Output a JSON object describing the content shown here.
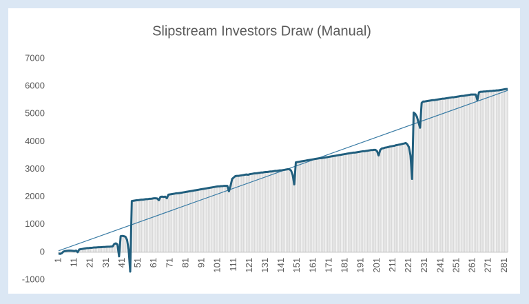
{
  "chart_data": {
    "type": "line",
    "title": "Slipstream Investors Draw (Manual)",
    "x": [
      1,
      2,
      3,
      4,
      5,
      6,
      7,
      8,
      9,
      10,
      11,
      12,
      13,
      14,
      15,
      16,
      17,
      18,
      19,
      20,
      21,
      22,
      23,
      24,
      25,
      26,
      27,
      28,
      29,
      30,
      31,
      32,
      33,
      34,
      35,
      36,
      37,
      38,
      39,
      40,
      41,
      42,
      43,
      44,
      45,
      46,
      47,
      48,
      49,
      50,
      51,
      52,
      53,
      54,
      55,
      56,
      57,
      58,
      59,
      60,
      61,
      62,
      63,
      64,
      65,
      66,
      67,
      68,
      69,
      70,
      71,
      72,
      73,
      74,
      75,
      76,
      77,
      78,
      79,
      80,
      81,
      82,
      83,
      84,
      85,
      86,
      87,
      88,
      89,
      90,
      91,
      92,
      93,
      94,
      95,
      96,
      97,
      98,
      99,
      100,
      101,
      102,
      103,
      104,
      105,
      106,
      107,
      108,
      109,
      110,
      111,
      112,
      113,
      114,
      115,
      116,
      117,
      118,
      119,
      120,
      121,
      122,
      123,
      124,
      125,
      126,
      127,
      128,
      129,
      130,
      131,
      132,
      133,
      134,
      135,
      136,
      137,
      138,
      139,
      140,
      141,
      142,
      143,
      144,
      145,
      146,
      147,
      148,
      149,
      150,
      151,
      152,
      153,
      154,
      155,
      156,
      157,
      158,
      159,
      160,
      161,
      162,
      163,
      164,
      165,
      166,
      167,
      168,
      169,
      170,
      171,
      172,
      173,
      174,
      175,
      176,
      177,
      178,
      179,
      180,
      181,
      182,
      183,
      184,
      185,
      186,
      187,
      188,
      189,
      190,
      191,
      192,
      193,
      194,
      195,
      196,
      197,
      198,
      199,
      200,
      201,
      202,
      203,
      204,
      205,
      206,
      207,
      208,
      209,
      210,
      211,
      212,
      213,
      214,
      215,
      216,
      217,
      218,
      219,
      220,
      221,
      222,
      223,
      224,
      225,
      226,
      227,
      228,
      229,
      230,
      231,
      232,
      233,
      234,
      235,
      236,
      237,
      238,
      239,
      240,
      241,
      242,
      243,
      244,
      245,
      246,
      247,
      248,
      249,
      250,
      251,
      252,
      253,
      254,
      255,
      256,
      257,
      258,
      259,
      260,
      261,
      262,
      263,
      264,
      265,
      266,
      267,
      268,
      269,
      270,
      271,
      272,
      273,
      274,
      275,
      276,
      277,
      278,
      279,
      280,
      281,
      282,
      283
    ],
    "series": [
      {
        "color": "#215f7e",
        "bar_color": "#d9d9d9",
        "values": [
          -50,
          -60,
          -40,
          20,
          40,
          50,
          55,
          60,
          55,
          50,
          40,
          60,
          0,
          100,
          110,
          120,
          130,
          140,
          150,
          150,
          160,
          160,
          170,
          170,
          175,
          180,
          180,
          185,
          190,
          190,
          195,
          200,
          200,
          205,
          210,
          300,
          320,
          280,
          -150,
          580,
          590,
          580,
          560,
          450,
          100,
          -700,
          1850,
          1860,
          1870,
          1880,
          1880,
          1890,
          1900,
          1900,
          1910,
          1920,
          1920,
          1930,
          1930,
          1940,
          1950,
          1950,
          1940,
          1880,
          2000,
          2010,
          2000,
          2010,
          1950,
          2080,
          2090,
          2100,
          2110,
          2120,
          2130,
          2130,
          2140,
          2150,
          2160,
          2170,
          2180,
          2190,
          2200,
          2210,
          2220,
          2230,
          2240,
          2250,
          2260,
          2270,
          2280,
          2290,
          2300,
          2310,
          2320,
          2330,
          2340,
          2350,
          2360,
          2370,
          2380,
          2380,
          2390,
          2390,
          2400,
          2400,
          2400,
          2200,
          2400,
          2650,
          2700,
          2750,
          2760,
          2760,
          2770,
          2780,
          2790,
          2800,
          2810,
          2800,
          2820,
          2830,
          2840,
          2850,
          2850,
          2860,
          2870,
          2880,
          2880,
          2890,
          2900,
          2900,
          2910,
          2920,
          2920,
          2930,
          2940,
          2940,
          2950,
          2960,
          2960,
          2970,
          2980,
          2990,
          3000,
          3000,
          2950,
          2800,
          2450,
          3250,
          3260,
          3270,
          3280,
          3290,
          3300,
          3310,
          3320,
          3330,
          3340,
          3350,
          3360,
          3370,
          3380,
          3390,
          3400,
          3400,
          3410,
          3420,
          3430,
          3440,
          3450,
          3460,
          3470,
          3480,
          3490,
          3500,
          3510,
          3520,
          3530,
          3540,
          3550,
          3560,
          3570,
          3580,
          3590,
          3600,
          3600,
          3610,
          3620,
          3630,
          3640,
          3650,
          3650,
          3660,
          3670,
          3680,
          3690,
          3690,
          3700,
          3700,
          3650,
          3500,
          3700,
          3750,
          3760,
          3780,
          3790,
          3800,
          3820,
          3830,
          3840,
          3850,
          3870,
          3880,
          3890,
          3900,
          3920,
          3930,
          3950,
          3900,
          3800,
          3500,
          2650,
          5050,
          5000,
          4900,
          4700,
          4500,
          5400,
          5450,
          5450,
          5460,
          5470,
          5480,
          5490,
          5500,
          5500,
          5510,
          5520,
          5530,
          5540,
          5550,
          5550,
          5560,
          5570,
          5580,
          5590,
          5600,
          5600,
          5610,
          5620,
          5630,
          5640,
          5650,
          5650,
          5660,
          5670,
          5680,
          5690,
          5700,
          5700,
          5700,
          5700,
          5500,
          5780,
          5800,
          5800,
          5810,
          5810,
          5820,
          5820,
          5830,
          5830,
          5840,
          5840,
          5850,
          5850,
          5860,
          5870,
          5880,
          5890,
          5900,
          5900
        ]
      }
    ],
    "trendline": {
      "color": "#3a7ca5",
      "x": [
        1,
        283
      ],
      "values": [
        50,
        5850
      ]
    },
    "xlim": [
      1,
      283
    ],
    "xticks": [
      1,
      11,
      21,
      31,
      41,
      51,
      61,
      71,
      81,
      91,
      101,
      111,
      121,
      131,
      141,
      151,
      161,
      171,
      181,
      191,
      201,
      211,
      221,
      231,
      241,
      251,
      261,
      271,
      281
    ],
    "ylim": [
      -1000,
      7000
    ],
    "yticks": [
      -1000,
      0,
      1000,
      2000,
      3000,
      4000,
      5000,
      6000,
      7000
    ],
    "grid": false
  }
}
